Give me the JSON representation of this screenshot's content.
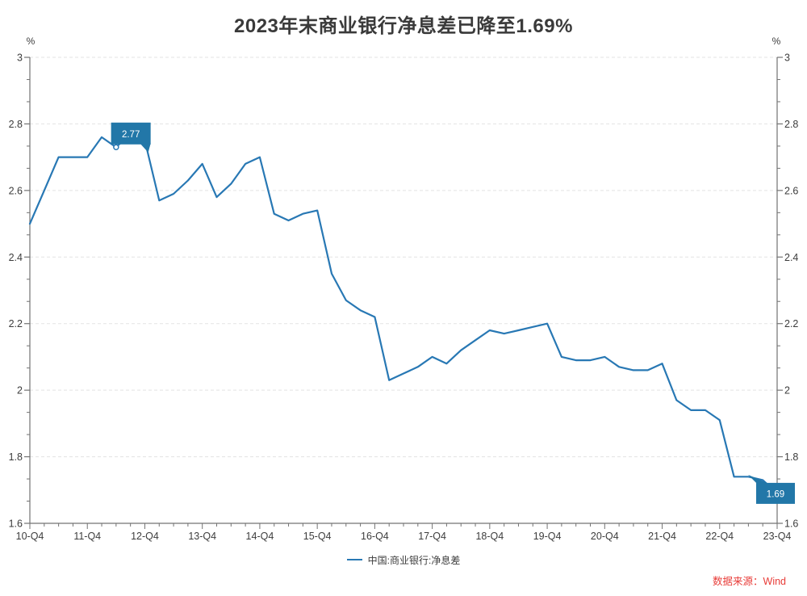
{
  "header": {
    "title": "2023年末商业银行净息差已降至1.69%"
  },
  "chart_data": {
    "type": "line",
    "title": "2023年末商业银行净息差已降至1.69%",
    "y_unit": "%",
    "ylim": [
      1.6,
      3.0
    ],
    "grid": "horizontal-dashed",
    "legend_position": "bottom-center",
    "y_tick_labels": [
      "1.6",
      "1.8",
      "2",
      "2.2",
      "2.4",
      "2.6",
      "2.8",
      "3"
    ],
    "x_tick_labels": [
      "10-Q4",
      "11-Q4",
      "12-Q4",
      "13-Q4",
      "14-Q4",
      "15-Q4",
      "16-Q4",
      "17-Q4",
      "18-Q4",
      "19-Q4",
      "20-Q4",
      "21-Q4",
      "22-Q4",
      "23-Q4"
    ],
    "categories": [
      "10-Q4",
      "11-Q1",
      "11-Q2",
      "11-Q3",
      "11-Q4",
      "12-Q1",
      "12-Q2",
      "12-Q3",
      "12-Q4",
      "13-Q1",
      "13-Q2",
      "13-Q3",
      "13-Q4",
      "14-Q1",
      "14-Q2",
      "14-Q3",
      "14-Q4",
      "15-Q1",
      "15-Q2",
      "15-Q3",
      "15-Q4",
      "16-Q1",
      "16-Q2",
      "16-Q3",
      "16-Q4",
      "17-Q1",
      "17-Q2",
      "17-Q3",
      "17-Q4",
      "18-Q1",
      "18-Q2",
      "18-Q3",
      "18-Q4",
      "19-Q1",
      "19-Q2",
      "19-Q3",
      "19-Q4",
      "20-Q1",
      "20-Q2",
      "20-Q3",
      "20-Q4",
      "21-Q1",
      "21-Q2",
      "21-Q3",
      "21-Q4",
      "22-Q1",
      "22-Q2",
      "22-Q3",
      "22-Q4",
      "23-Q1",
      "23-Q2",
      "23-Q3",
      "23-Q4"
    ],
    "series": [
      {
        "name": "中国:商业银行:净息差",
        "color": "#2878b4",
        "values": [
          2.5,
          2.6,
          2.7,
          2.7,
          2.7,
          2.76,
          2.73,
          2.77,
          2.75,
          2.57,
          2.59,
          2.63,
          2.68,
          2.58,
          2.62,
          2.68,
          2.7,
          2.53,
          2.51,
          2.53,
          2.54,
          2.35,
          2.27,
          2.24,
          2.22,
          2.03,
          2.05,
          2.07,
          2.1,
          2.08,
          2.12,
          2.15,
          2.18,
          2.17,
          2.18,
          2.19,
          2.2,
          2.1,
          2.09,
          2.09,
          2.1,
          2.07,
          2.06,
          2.06,
          2.08,
          1.97,
          1.94,
          1.94,
          1.91,
          1.74,
          1.74,
          1.73,
          1.69
        ]
      }
    ],
    "annotations": [
      {
        "label": "2.77",
        "category": "12-Q3",
        "value": 2.77
      },
      {
        "label": "1.69",
        "category": "23-Q4",
        "value": 1.69
      }
    ]
  },
  "legend": {
    "items": [
      {
        "label": "中国:商业银行:净息差",
        "color": "#2878b4"
      }
    ]
  },
  "footer": {
    "source": "数据来源：Wind"
  },
  "colors": {
    "line": "#2878b4",
    "annotation_box": "#2277a8",
    "annotation_text": "#ffffff",
    "grid": "#e3e3e3",
    "axis": "#737373",
    "axis_text": "#3c3c3c",
    "title": "#3a3a3a",
    "source": "#e83c38",
    "background": "#ffffff"
  }
}
